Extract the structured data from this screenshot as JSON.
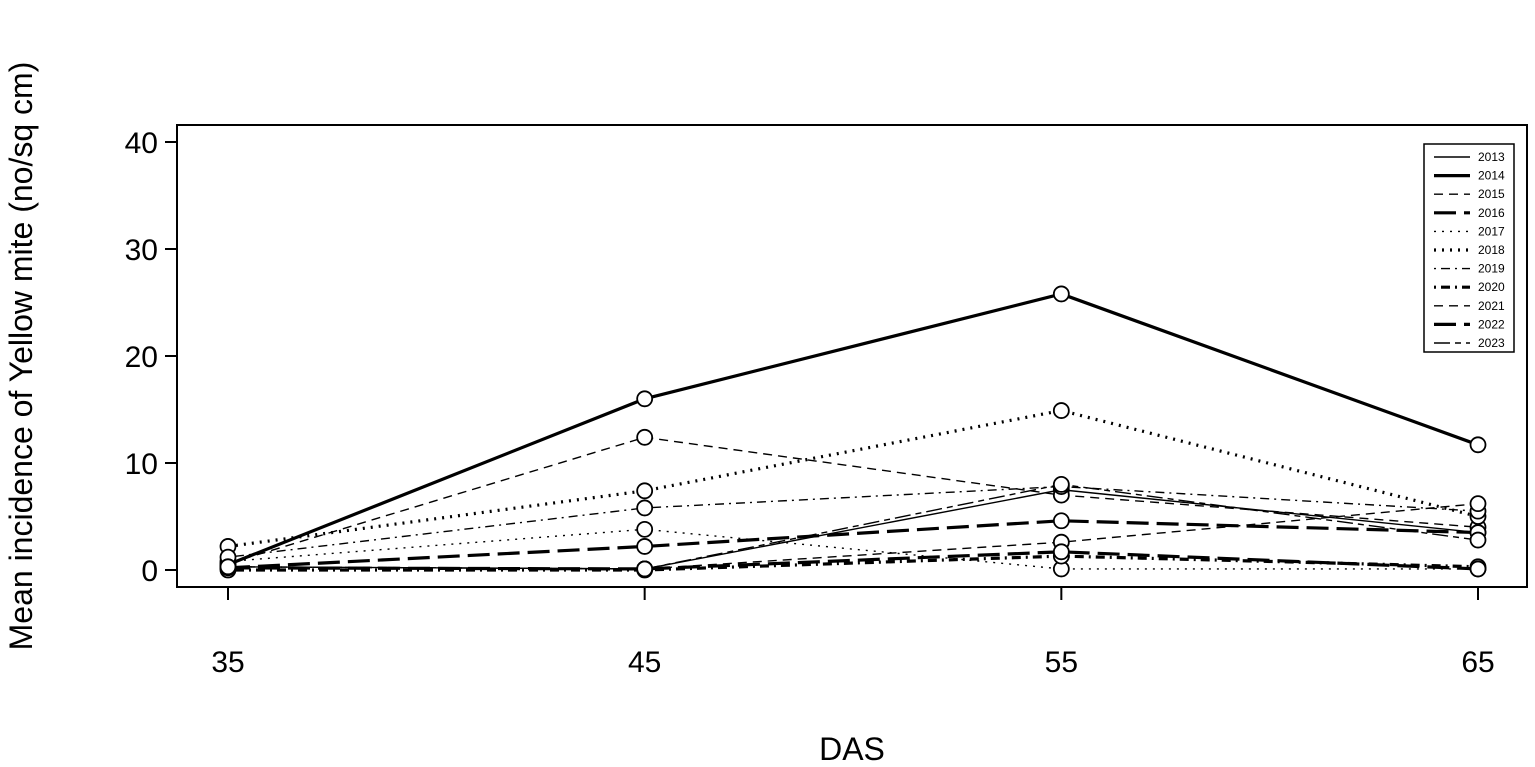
{
  "chart_data": {
    "type": "line",
    "title": "",
    "xlabel": "DAS",
    "ylabel": "Mean incidence of Yellow mite (no/sq cm)",
    "x": [
      35,
      45,
      55,
      65
    ],
    "xlim": [
      35,
      65
    ],
    "ylim": [
      0,
      40
    ],
    "yticks": [
      0,
      10,
      20,
      30,
      40
    ],
    "grid": false,
    "legend_position": "top-right",
    "series": [
      {
        "name": "2013",
        "dash": "solid",
        "weight": "thin",
        "values": [
          0.3,
          0.1,
          7.5,
          3.5
        ]
      },
      {
        "name": "2014",
        "dash": "solid",
        "weight": "thick",
        "values": [
          0.5,
          16.0,
          25.8,
          11.7
        ]
      },
      {
        "name": "2015",
        "dash": "dashed",
        "weight": "thin",
        "values": [
          0.6,
          12.4,
          7.0,
          4.0
        ]
      },
      {
        "name": "2016",
        "dash": "longdash",
        "weight": "thick",
        "values": [
          0.2,
          2.2,
          4.6,
          3.5
        ]
      },
      {
        "name": "2017",
        "dash": "dotted",
        "weight": "thin",
        "values": [
          0.8,
          3.8,
          0.1,
          0.1
        ]
      },
      {
        "name": "2018",
        "dash": "dotted",
        "weight": "thick",
        "values": [
          2.2,
          7.4,
          14.9,
          5.0
        ]
      },
      {
        "name": "2019",
        "dash": "dotdash",
        "weight": "thin",
        "values": [
          1.2,
          5.8,
          7.8,
          5.5
        ]
      },
      {
        "name": "2020",
        "dash": "dotdash",
        "weight": "thick",
        "values": [
          0.0,
          0.0,
          1.3,
          0.3
        ]
      },
      {
        "name": "2021",
        "dash": "dashed",
        "weight": "thin",
        "values": [
          0.3,
          0.1,
          2.6,
          6.2
        ]
      },
      {
        "name": "2022",
        "dash": "longdash",
        "weight": "thick",
        "values": [
          0.2,
          0.1,
          1.7,
          0.1
        ]
      },
      {
        "name": "2023",
        "dash": "twodash",
        "weight": "thin",
        "values": [
          0.3,
          0.1,
          8.0,
          2.8
        ]
      }
    ]
  }
}
